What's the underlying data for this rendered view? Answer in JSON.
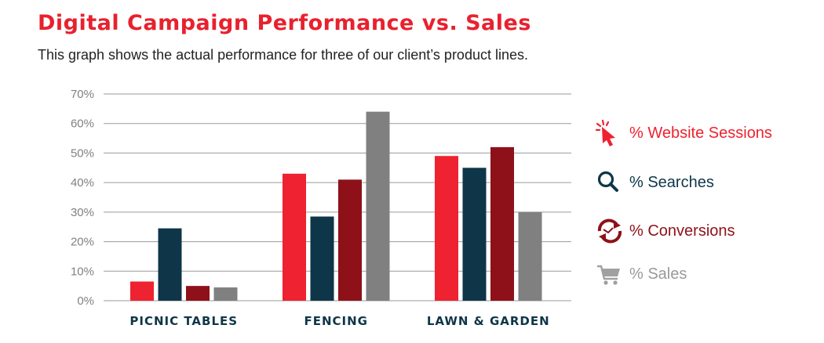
{
  "header": {
    "title": "Digital Campaign Performance vs. Sales",
    "subtitle": "This graph shows the actual performance for three of our client’s product lines."
  },
  "legend": [
    {
      "label": "% Website Sessions",
      "icon": "cursor-click-icon",
      "color": "#ee2230"
    },
    {
      "label": "% Searches",
      "icon": "magnifier-icon",
      "color": "#0e3648"
    },
    {
      "label": "% Conversions",
      "icon": "refresh-cycle-icon",
      "color": "#8e1119"
    },
    {
      "label": "% Sales",
      "icon": "shopping-cart-icon",
      "color": "#808080"
    }
  ],
  "chart_data": {
    "type": "bar",
    "categories": [
      "PICNIC TABLES",
      "FENCING",
      "LAWN & GARDEN"
    ],
    "series": [
      {
        "name": "% Website Sessions",
        "color": "#ee2230",
        "values": [
          6.5,
          43,
          49
        ]
      },
      {
        "name": "% Searches",
        "color": "#0e3648",
        "values": [
          24.5,
          28.5,
          45
        ]
      },
      {
        "name": "% Conversions",
        "color": "#8e1119",
        "values": [
          5,
          41,
          52
        ]
      },
      {
        "name": "% Sales",
        "color": "#808080",
        "values": [
          4.5,
          64,
          30
        ]
      }
    ],
    "yticks": [
      "0%",
      "10%",
      "20%",
      "30%",
      "40%",
      "50%",
      "60%",
      "70%"
    ],
    "ylim": [
      0,
      70
    ],
    "grid": true,
    "legend_position": "right"
  }
}
